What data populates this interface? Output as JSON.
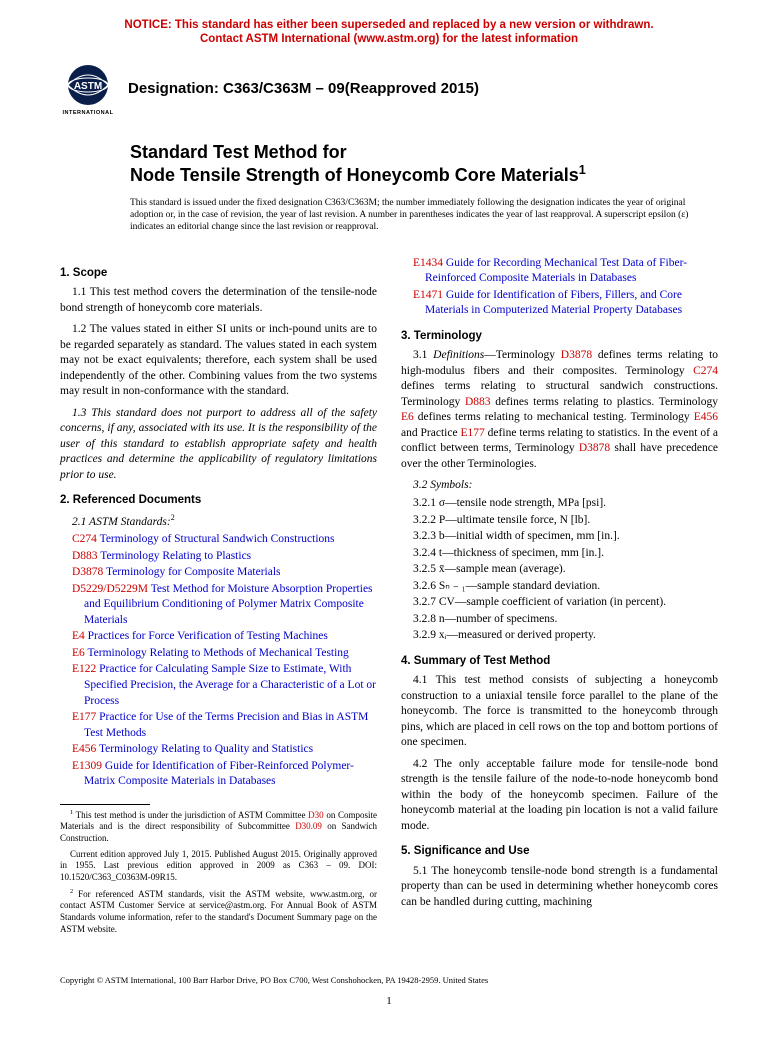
{
  "notice": {
    "line1": "NOTICE: This standard has either been superseded and replaced by a new version or withdrawn.",
    "line2": "Contact ASTM International (www.astm.org) for the latest information",
    "color": "#cc0000"
  },
  "logo": {
    "top_text": "ASTM",
    "bottom_text": "INTERNATIONAL"
  },
  "designation": "Designation: C363/C363M – 09(Reapproved 2015)",
  "title": {
    "line1": "Standard Test Method for",
    "line2": "Node Tensile Strength of Honeycomb Core Materials",
    "sup": "1"
  },
  "issued_note": "This standard is issued under the fixed designation C363/C363M; the number immediately following the designation indicates the year of original adoption or, in the case of revision, the year of last revision. A number in parentheses indicates the year of last reapproval. A superscript epsilon (ε) indicates an editorial change since the last revision or reapproval.",
  "sections": {
    "scope": {
      "head": "1. Scope",
      "p1": "1.1 This test method covers the determination of the tensile-node bond strength of honeycomb core materials.",
      "p2": "1.2 The values stated in either SI units or inch-pound units are to be regarded separately as standard. The values stated in each system may not be exact equivalents; therefore, each system shall be used independently of the other. Combining values from the two systems may result in non-conformance with the standard.",
      "p3": "1.3 This standard does not purport to address all of the safety concerns, if any, associated with its use. It is the responsibility of the user of this standard to establish appropriate safety and health practices and determine the applicability of regulatory limitations prior to use."
    },
    "refdocs": {
      "head": "2. Referenced Documents",
      "sub": "2.1 ASTM Standards:",
      "sub_sup": "2",
      "items": [
        {
          "code": "C274",
          "text": "Terminology of Structural Sandwich Constructions"
        },
        {
          "code": "D883",
          "text": "Terminology Relating to Plastics"
        },
        {
          "code": "D3878",
          "text": "Terminology for Composite Materials"
        },
        {
          "code": "D5229/D5229M",
          "text": "Test Method for Moisture Absorption Properties and Equilibrium Conditioning of Polymer Matrix Composite Materials"
        },
        {
          "code": "E4",
          "text": "Practices for Force Verification of Testing Machines"
        },
        {
          "code": "E6",
          "text": "Terminology Relating to Methods of Mechanical Testing"
        },
        {
          "code": "E122",
          "text": "Practice for Calculating Sample Size to Estimate, With Specified Precision, the Average for a Characteristic of a Lot or Process"
        },
        {
          "code": "E177",
          "text": "Practice for Use of the Terms Precision and Bias in ASTM Test Methods"
        },
        {
          "code": "E456",
          "text": "Terminology Relating to Quality and Statistics"
        },
        {
          "code": "E1309",
          "text": "Guide for Identification of Fiber-Reinforced Polymer-Matrix Composite Materials in Databases"
        },
        {
          "code": "E1434",
          "text": "Guide for Recording Mechanical Test Data of Fiber-Reinforced Composite Materials in Databases"
        },
        {
          "code": "E1471",
          "text": "Guide for Identification of Fibers, Fillers, and Core Materials in Computerized Material Property Databases"
        }
      ]
    },
    "terminology": {
      "head": "3. Terminology",
      "p1_parts": {
        "lead": "3.1 ",
        "def_label": "Definitions",
        "t1": "—Terminology ",
        "c1": "D3878",
        "t2": " defines terms relating to high-modulus fibers and their composites. Terminology ",
        "c2": "C274",
        "t3": " defines terms relating to structural sandwich constructions. Terminology ",
        "c3": "D883",
        "t4": " defines terms relating to plastics. Terminology ",
        "c4": "E6",
        "t5": " defines terms relating to mechanical testing. Terminology ",
        "c5": "E456",
        "t6": " and Practice ",
        "c6": "E177",
        "t7": " define terms relating to statistics. In the event of a conflict between terms, Terminology ",
        "c7": "D3878",
        "t8": " shall have precedence over the other Terminologies."
      },
      "symbols_head": "3.2 Symbols:",
      "symbols": [
        "3.2.1 σ—tensile node strength, MPa [psi].",
        "3.2.2 P—ultimate tensile force, N [lb].",
        "3.2.3 b—initial width of specimen, mm [in.].",
        "3.2.4 t—thickness of specimen, mm [in.].",
        "3.2.5 x̄—sample mean (average).",
        "3.2.6 Sₙ ₋ ₁—sample standard deviation.",
        "3.2.7 CV—sample coefficient of variation (in percent).",
        "3.2.8 n—number of specimens.",
        "3.2.9 xᵢ—measured or derived property."
      ]
    },
    "summary": {
      "head": "4. Summary of Test Method",
      "p1": "4.1 This test method consists of subjecting a honeycomb construction to a uniaxial tensile force parallel to the plane of the honeycomb. The force is transmitted to the honeycomb through pins, which are placed in cell rows on the top and bottom portions of one specimen.",
      "p2": "4.2 The only acceptable failure mode for tensile-node bond strength is the tensile failure of the node-to-node honeycomb bond within the body of the honeycomb specimen. Failure of the honeycomb material at the loading pin location is not a valid failure mode."
    },
    "significance": {
      "head": "5. Significance and Use",
      "p1": "5.1 The honeycomb tensile-node bond strength is a fundamental property than can be used in determining whether honeycomb cores can be handled during cutting, machining"
    }
  },
  "footnotes": {
    "f1_parts": {
      "sup": "1",
      "t1": " This test method is under the jurisdiction of ASTM Committee ",
      "c1": "D30",
      "t2": " on Composite Materials and is the direct responsibility of Subcommittee ",
      "c2": "D30.09",
      "t3": " on Sandwich Construction."
    },
    "f1b": "Current edition approved July 1, 2015. Published August 2015. Originally approved in 1955. Last previous edition approved in 2009 as C363 – 09. DOI: 10.1520/C363_C0363M-09R15.",
    "f2_parts": {
      "sup": "2",
      "text": " For referenced ASTM standards, visit the ASTM website, www.astm.org, or contact ASTM Customer Service at service@astm.org. For Annual Book of ASTM Standards volume information, refer to the standard's Document Summary page on the ASTM website."
    }
  },
  "copyright": "Copyright © ASTM International, 100 Barr Harbor Drive, PO Box C700, West Conshohocken, PA 19428-2959. United States",
  "page_number": "1",
  "colors": {
    "link_red": "#cc0000",
    "link_blue": "#0000cc"
  }
}
